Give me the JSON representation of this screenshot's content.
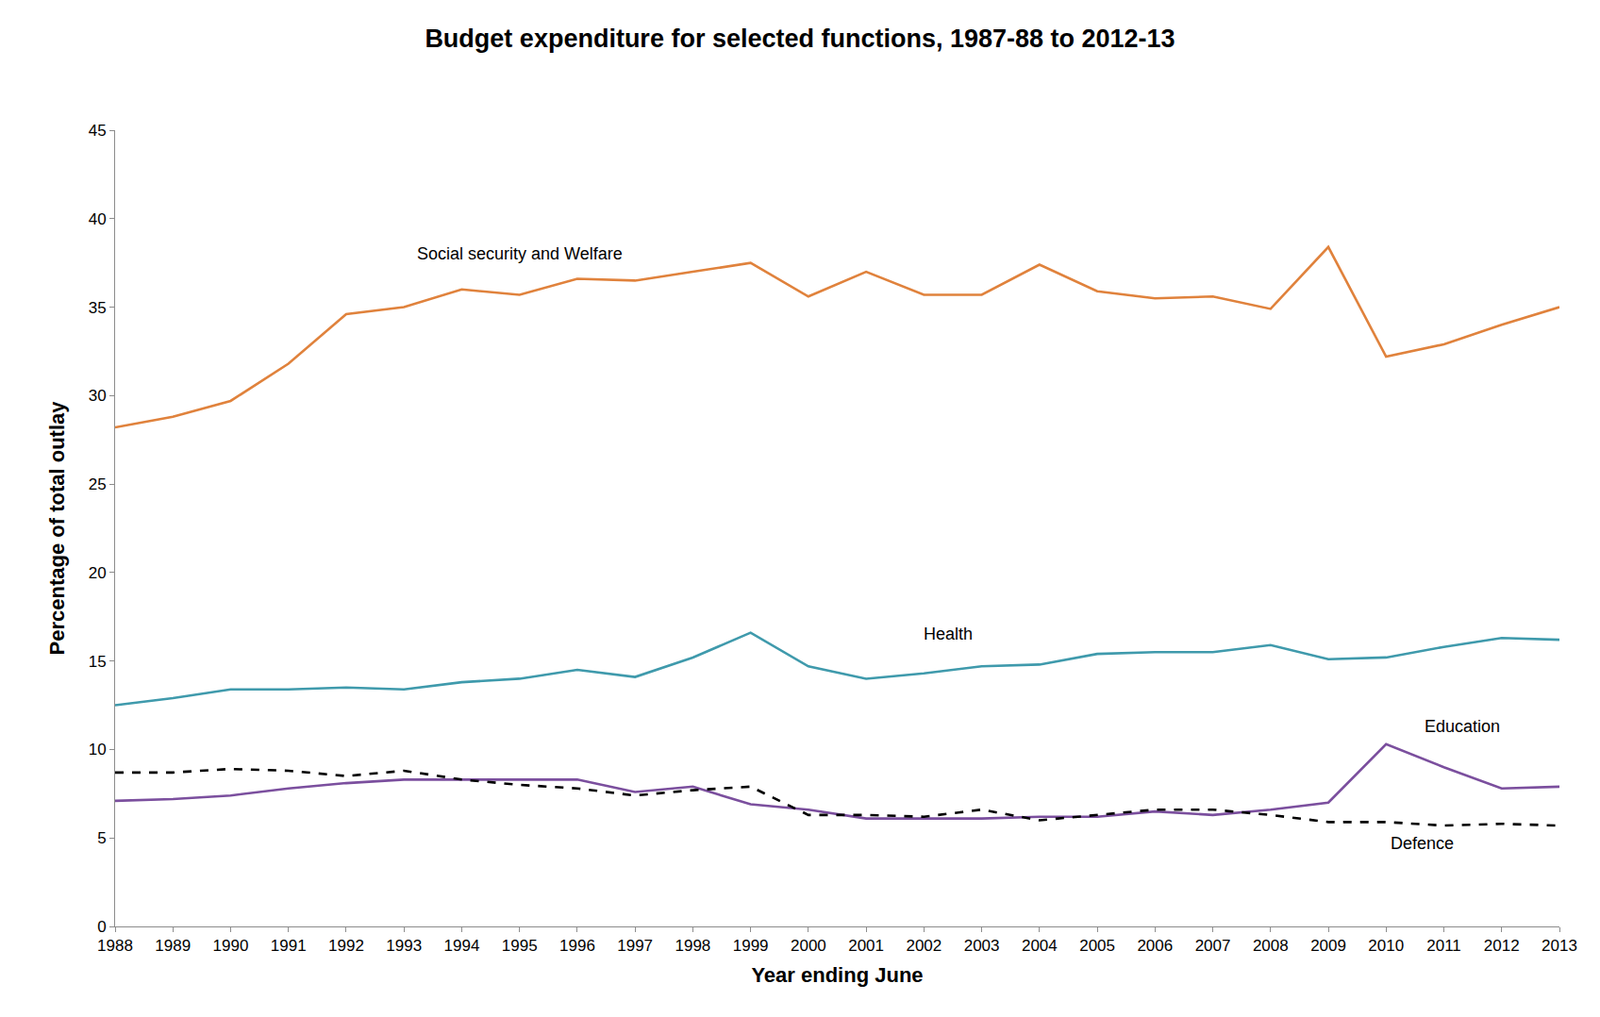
{
  "chart_data": {
    "type": "line",
    "title": "Budget expenditure for selected functions, 1987-88 to 2012-13",
    "x_label": "Year ending June",
    "y_label": "Percentage of total outlay",
    "x": [
      1988,
      1989,
      1990,
      1991,
      1992,
      1993,
      1994,
      1995,
      1996,
      1997,
      1998,
      1999,
      2000,
      2001,
      2002,
      2003,
      2004,
      2005,
      2006,
      2007,
      2008,
      2009,
      2010,
      2011,
      2012,
      2013
    ],
    "series": [
      {
        "name": "Social security and Welfare",
        "color": "#e0823c",
        "line_style": "solid",
        "values": [
          28.2,
          28.8,
          29.7,
          31.8,
          34.6,
          35.0,
          36.0,
          35.7,
          36.6,
          36.5,
          37.0,
          37.5,
          35.6,
          37.0,
          35.7,
          35.7,
          37.4,
          35.9,
          35.5,
          35.6,
          34.9,
          38.4,
          32.2,
          32.9,
          34.0,
          35.0
        ]
      },
      {
        "name": "Health",
        "color": "#3f9aac",
        "line_style": "solid",
        "values": [
          12.5,
          12.9,
          13.4,
          13.4,
          13.5,
          13.4,
          13.8,
          14.0,
          14.5,
          14.1,
          15.2,
          16.6,
          14.7,
          14.0,
          14.3,
          14.7,
          14.8,
          15.4,
          15.5,
          15.5,
          15.9,
          15.1,
          15.2,
          15.8,
          16.3,
          16.2
        ]
      },
      {
        "name": "Education",
        "color": "#7b4f9e",
        "line_style": "solid",
        "values": [
          7.1,
          7.2,
          7.4,
          7.8,
          8.1,
          8.3,
          8.3,
          8.3,
          8.3,
          7.6,
          7.9,
          6.9,
          6.6,
          6.1,
          6.1,
          6.1,
          6.2,
          6.2,
          6.5,
          6.3,
          6.6,
          7.0,
          10.3,
          9.0,
          7.8,
          7.9
        ]
      },
      {
        "name": "Defence",
        "color": "#000000",
        "line_style": "dashed",
        "values": [
          8.7,
          8.7,
          8.9,
          8.8,
          8.5,
          8.8,
          8.3,
          8.0,
          7.8,
          7.4,
          7.7,
          7.9,
          6.3,
          6.3,
          6.2,
          6.6,
          6.0,
          6.3,
          6.6,
          6.6,
          6.3,
          5.9,
          5.9,
          5.7,
          5.8,
          5.7
        ]
      }
    ],
    "xlim": [
      1988,
      2013
    ],
    "xticks": [
      1988,
      1989,
      1990,
      1991,
      1992,
      1993,
      1994,
      1995,
      1996,
      1997,
      1998,
      1999,
      2000,
      2001,
      2002,
      2003,
      2004,
      2005,
      2006,
      2007,
      2008,
      2009,
      2010,
      2011,
      2012,
      2013
    ],
    "ylim": [
      0,
      45
    ],
    "yticks": [
      0,
      5,
      10,
      15,
      20,
      25,
      30,
      35,
      40,
      45
    ],
    "grid": false
  }
}
